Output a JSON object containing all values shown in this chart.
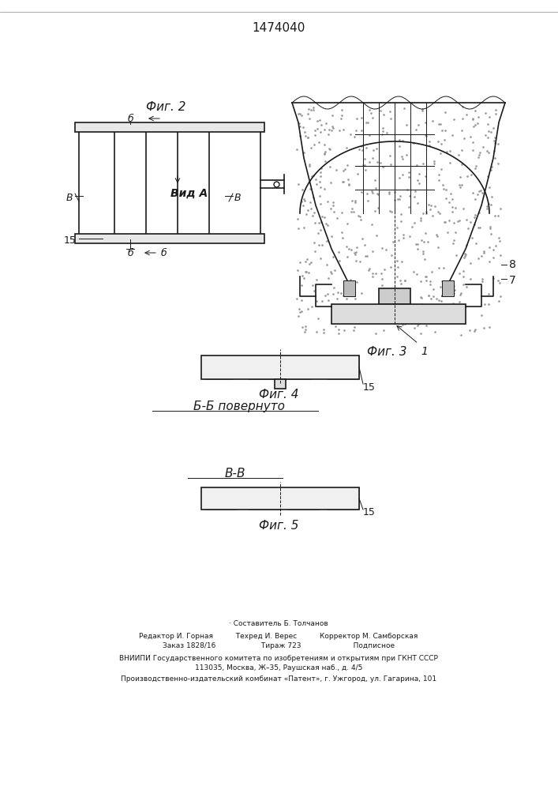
{
  "patent_number": "1474040",
  "background_color": "#ffffff",
  "line_color": "#1a1a1a",
  "hatch_color": "#333333",
  "dot_color": "#888888",
  "fig2_label": "Фиг. 2",
  "fig3_label": "Фиг. 3",
  "fig4_label": "Фиг. 4",
  "fig5_label": "Фиг. 5",
  "vid_a_label": "Вид А",
  "bb_label": "Б-Б повернуто",
  "vv_label": "В-В",
  "footer_lines": [
    "· Составитель Б. Толчанов",
    "Редактор И. Горная          Техред И. Верес          Корректор М. Самборская",
    "Заказ 1828/16                    Тираж 723                       Подписное",
    "ВНИИПИ Государственного комитета по изобретениям и открытиям при ГКНТ СССР",
    "113035, Москва, Ж–35, Раушская наб., д. 4/5",
    "Производственно-издательский комбинат «Патент», г. Ужгород, ул. Гагарина, 101"
  ]
}
